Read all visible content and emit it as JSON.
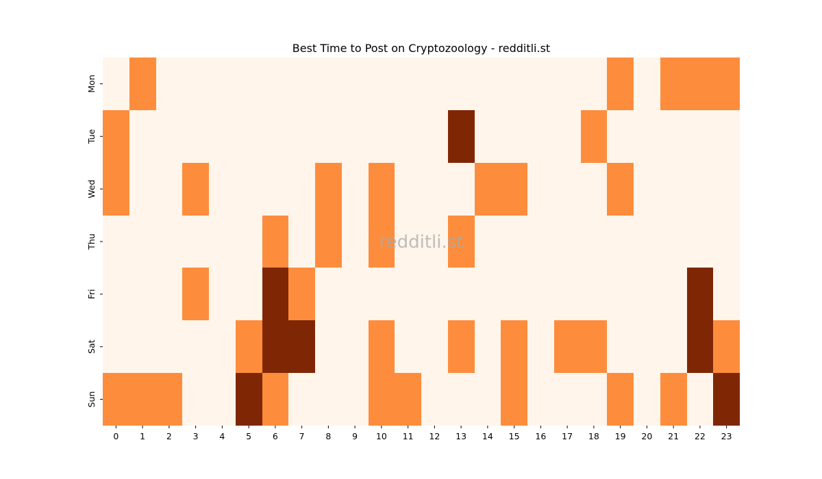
{
  "chart_data": {
    "type": "heatmap",
    "title": "Best Time to Post on Cryptozoology - redditli.st",
    "xlabel": "",
    "ylabel": "",
    "x_categories": [
      "0",
      "1",
      "2",
      "3",
      "4",
      "5",
      "6",
      "7",
      "8",
      "9",
      "10",
      "11",
      "12",
      "13",
      "14",
      "15",
      "16",
      "17",
      "18",
      "19",
      "20",
      "21",
      "22",
      "23"
    ],
    "y_categories": [
      "Mon",
      "Tue",
      "Wed",
      "Thu",
      "Fri",
      "Sat",
      "Sun"
    ],
    "values": [
      [
        0,
        1,
        0,
        0,
        0,
        0,
        0,
        0,
        0,
        0,
        0,
        0,
        0,
        0,
        0,
        0,
        0,
        0,
        0,
        1,
        0,
        1,
        1,
        1
      ],
      [
        1,
        0,
        0,
        0,
        0,
        0,
        0,
        0,
        0,
        0,
        0,
        0,
        0,
        2,
        0,
        0,
        0,
        0,
        1,
        0,
        0,
        0,
        0,
        0
      ],
      [
        1,
        0,
        0,
        1,
        0,
        0,
        0,
        0,
        1,
        0,
        1,
        0,
        0,
        0,
        1,
        1,
        0,
        0,
        0,
        1,
        0,
        0,
        0,
        0
      ],
      [
        0,
        0,
        0,
        0,
        0,
        0,
        1,
        0,
        1,
        0,
        1,
        0,
        0,
        1,
        0,
        0,
        0,
        0,
        0,
        0,
        0,
        0,
        0,
        0
      ],
      [
        0,
        0,
        0,
        1,
        0,
        0,
        2,
        1,
        0,
        0,
        0,
        0,
        0,
        0,
        0,
        0,
        0,
        0,
        0,
        0,
        0,
        0,
        2,
        0
      ],
      [
        0,
        0,
        0,
        0,
        0,
        1,
        2,
        2,
        0,
        0,
        1,
        0,
        0,
        1,
        0,
        1,
        0,
        1,
        1,
        0,
        0,
        0,
        2,
        1
      ],
      [
        1,
        1,
        1,
        0,
        0,
        2,
        1,
        0,
        0,
        0,
        1,
        1,
        0,
        0,
        0,
        1,
        0,
        0,
        0,
        1,
        0,
        1,
        0,
        2
      ]
    ],
    "value_range": [
      0,
      2
    ],
    "colormap": "Oranges",
    "colors": {
      "low": "#fff5eb",
      "mid": "#fd8d3c",
      "high": "#7f2704"
    },
    "colorbar": false,
    "watermark": "redditli.st"
  }
}
